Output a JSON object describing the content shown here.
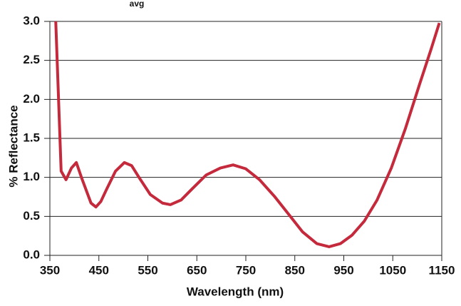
{
  "chart_data": {
    "type": "line",
    "title": "avg",
    "xlabel": "Wavelength (nm)",
    "ylabel": "% Reflectance",
    "x": [
      362,
      373,
      383,
      394,
      404,
      415,
      434,
      444,
      454,
      466,
      484,
      502,
      517,
      533,
      555,
      580,
      596,
      618,
      640,
      669,
      698,
      724,
      750,
      778,
      808,
      837,
      866,
      895,
      920,
      943,
      967,
      992,
      1018,
      1047,
      1076,
      1105,
      1128,
      1145
    ],
    "series": [
      {
        "name": "% Reflectance",
        "color": "#c42a3c",
        "values": [
          3.0,
          1.08,
          0.97,
          1.12,
          1.19,
          0.99,
          0.67,
          0.62,
          0.69,
          0.85,
          1.08,
          1.19,
          1.15,
          0.99,
          0.78,
          0.67,
          0.65,
          0.71,
          0.85,
          1.03,
          1.12,
          1.16,
          1.11,
          0.97,
          0.76,
          0.53,
          0.3,
          0.15,
          0.11,
          0.15,
          0.26,
          0.44,
          0.71,
          1.12,
          1.63,
          2.2,
          2.64,
          2.98
        ]
      }
    ],
    "xlim": [
      350,
      1150
    ],
    "xticks": [
      350,
      450,
      550,
      650,
      750,
      850,
      950,
      1050,
      1150
    ],
    "ylim": [
      0,
      3
    ],
    "yticks": [
      {
        "value": 0,
        "label": "0.0"
      },
      0.5,
      {
        "value": 1,
        "label": "1.0"
      },
      1.5,
      {
        "value": 2,
        "label": "2.0"
      },
      2.5,
      {
        "value": 3,
        "label": "3.0"
      }
    ],
    "grid": true
  }
}
